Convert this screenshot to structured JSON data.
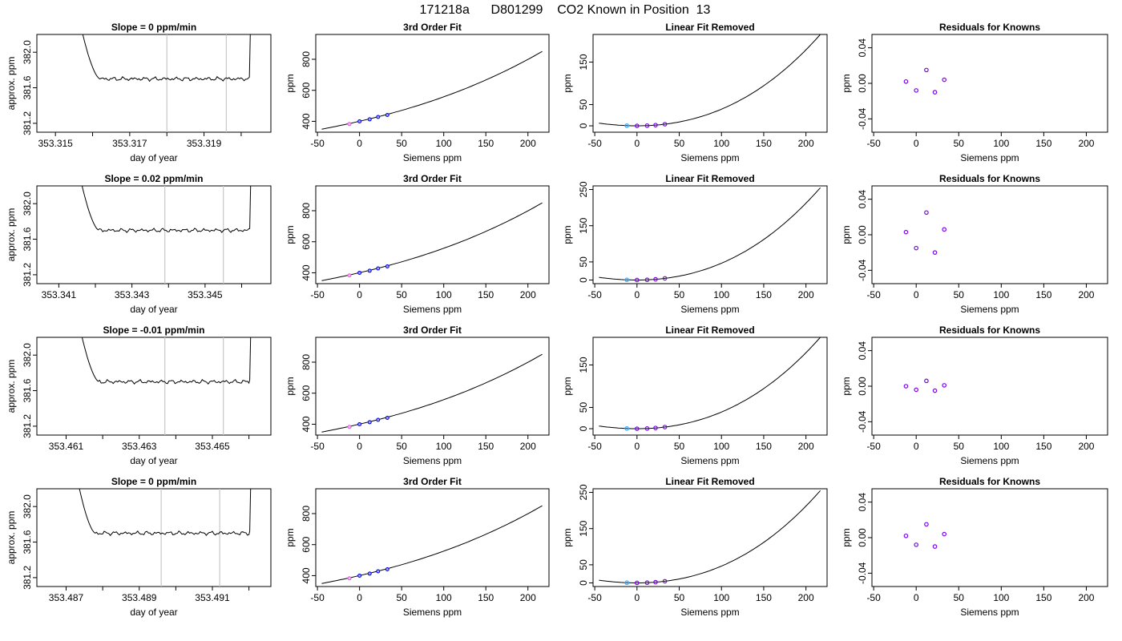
{
  "title": "171218a      D801299    CO2 Known in Position  13",
  "rows": [
    {
      "slope_title": "Slope =  0  ppm/min",
      "doy_ticks": [
        "353.315",
        "353.317",
        "353.319"
      ],
      "doy_minor": [
        353.316,
        353.318,
        353.32
      ],
      "doy_range": [
        353.3145,
        353.3208
      ],
      "doy_vlines": [
        353.318,
        353.3196
      ],
      "flat_start": 353.3162,
      "flat_end": 353.3202,
      "flat_level": 381.7,
      "lin_ylim": [
        -15,
        215
      ],
      "lin_ticks": [
        "0",
        "50",
        "150"
      ],
      "lin_tick_vals": [
        0,
        50,
        150
      ],
      "resid_ylim": [
        -0.055,
        0.055
      ],
      "resid_values": [
        0.002,
        -0.008,
        0.015,
        -0.01,
        0.004
      ]
    },
    {
      "slope_title": "Slope =  0.02  ppm/min",
      "doy_ticks": [
        "353.341",
        "353.343",
        "353.345"
      ],
      "doy_minor": [
        353.342,
        353.344,
        353.346
      ],
      "doy_range": [
        353.3404,
        353.3468
      ],
      "doy_vlines": [
        353.3439,
        353.3455
      ],
      "flat_start": 353.3421,
      "flat_end": 353.3462,
      "flat_level": 381.7,
      "lin_ylim": [
        -10,
        260
      ],
      "lin_ticks": [
        "0",
        "50",
        "150",
        "250"
      ],
      "lin_tick_vals": [
        0,
        50,
        150,
        250
      ],
      "resid_ylim": [
        -0.055,
        0.055
      ],
      "resid_values": [
        0.003,
        -0.015,
        0.025,
        -0.02,
        0.006
      ]
    },
    {
      "slope_title": "Slope =  -0.01  ppm/min",
      "doy_ticks": [
        "353.461",
        "353.463",
        "353.465"
      ],
      "doy_minor": [
        353.462,
        353.464,
        353.466
      ],
      "doy_range": [
        353.4602,
        353.4666
      ],
      "doy_vlines": [
        353.4637,
        353.4653
      ],
      "flat_start": 353.4619,
      "flat_end": 353.466,
      "flat_level": 381.7,
      "lin_ylim": [
        -15,
        215
      ],
      "lin_ticks": [
        "0",
        "50",
        "150"
      ],
      "lin_tick_vals": [
        0,
        50,
        150
      ],
      "resid_ylim": [
        -0.055,
        0.055
      ],
      "resid_values": [
        0.0,
        -0.004,
        0.006,
        -0.005,
        0.001
      ]
    },
    {
      "slope_title": "Slope =  0  ppm/min",
      "doy_ticks": [
        "353.487",
        "353.489",
        "353.491"
      ],
      "doy_minor": [
        353.488,
        353.49,
        353.492
      ],
      "doy_range": [
        353.4862,
        353.4926
      ],
      "doy_vlines": [
        353.4896,
        353.4912
      ],
      "flat_start": 353.4878,
      "flat_end": 353.492,
      "flat_level": 381.7,
      "lin_ylim": [
        -10,
        260
      ],
      "lin_ticks": [
        "0",
        "50",
        "150",
        "250"
      ],
      "lin_tick_vals": [
        0,
        50,
        150,
        250
      ],
      "resid_ylim": [
        -0.055,
        0.055
      ],
      "resid_values": [
        0.002,
        -0.008,
        0.015,
        -0.01,
        0.004
      ]
    }
  ],
  "labels": {
    "approx_ppm": "approx. ppm",
    "day_of_year": "day of year",
    "ppm": "ppm",
    "siemens_ppm": "Siemens ppm",
    "third_order_title": "3rd Order Fit",
    "linear_removed_title": "Linear Fit Removed",
    "residuals_title": "Residuals for Knowns"
  },
  "chart_data": {
    "type": "line",
    "x_siemens_known": [
      -12,
      0,
      12,
      22,
      33
    ],
    "ppm_known": [
      383,
      400,
      413,
      428,
      441
    ],
    "ppm_ylim": [
      330,
      960
    ],
    "ppm_ticks": [
      "400",
      "600",
      "800"
    ],
    "ppm_tick_vals": [
      400,
      600,
      800
    ],
    "siemens_xlim": [
      -52,
      225
    ],
    "siemens_ticks": [
      "-50",
      "0",
      "50",
      "100",
      "150",
      "200"
    ],
    "siemens_tick_vals": [
      -50,
      0,
      50,
      100,
      150,
      200
    ],
    "approx_ppm_ylim": [
      381.1,
      382.2
    ],
    "approx_ppm_ticks": [
      "381.2",
      "381.6",
      "382.0"
    ],
    "approx_ppm_tick_vals": [
      381.2,
      381.6,
      382.0
    ],
    "resid_ticks": [
      "-0.04",
      "0.00",
      "0.04"
    ],
    "resid_tick_vals": [
      -0.04,
      0.0,
      0.04
    ],
    "fit_curve_range": [
      -45,
      217
    ],
    "point_colors": {
      "first": "#33aaff",
      "others": "#0000dd",
      "resid": "#7a00ee",
      "fill_blue": "#9f9fff"
    }
  }
}
